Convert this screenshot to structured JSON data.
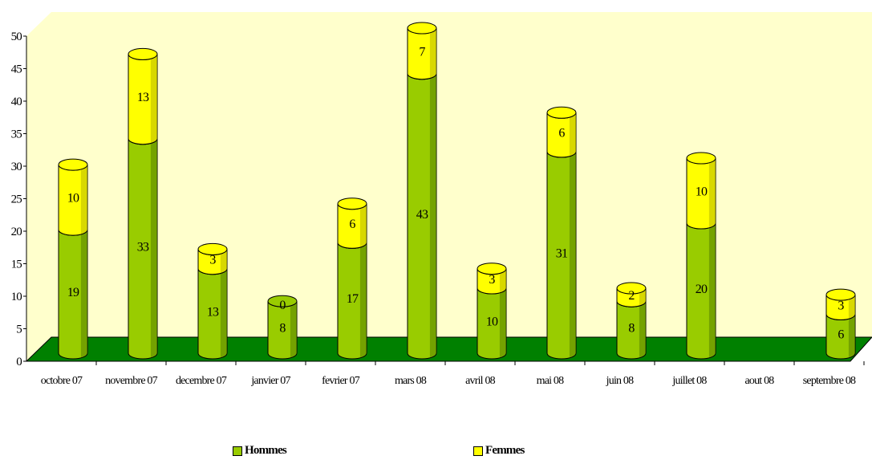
{
  "chart_data": {
    "type": "bar",
    "stacked": true,
    "categories": [
      "octobre 07",
      "novembre 07",
      "decembre 07",
      "janvier 07",
      "fevrier 07",
      "mars 08",
      "avril 08",
      "mai 08",
      "juin 08",
      "juillet 08",
      "aout 08",
      "septembre 08"
    ],
    "series": [
      {
        "name": "Hommes",
        "values": [
          19,
          33,
          13,
          8,
          17,
          43,
          10,
          31,
          8,
          20,
          0,
          6
        ]
      },
      {
        "name": "Femmes",
        "values": [
          10,
          13,
          3,
          0,
          6,
          7,
          3,
          6,
          2,
          10,
          0,
          3
        ]
      }
    ],
    "data_labels": {
      "Hommes": [
        "19",
        "33",
        "13",
        "8",
        "17",
        "43",
        "10",
        "31",
        "8",
        "20",
        "",
        "6"
      ],
      "Femmes": [
        "10",
        "13",
        "3",
        "0",
        "6",
        "7",
        "3",
        "6",
        "2",
        "10",
        "",
        "3"
      ]
    },
    "yticks": [
      0,
      5,
      10,
      15,
      20,
      25,
      30,
      35,
      40,
      45,
      50
    ],
    "ylim": [
      0,
      50
    ],
    "title": "",
    "xlabel": "",
    "ylabel": "",
    "legend_position": "bottom",
    "colors": {
      "Hommes": "#99cc00",
      "Femmes": "#ffff00",
      "wall": "#ffffcc",
      "floor": "#008000"
    }
  }
}
